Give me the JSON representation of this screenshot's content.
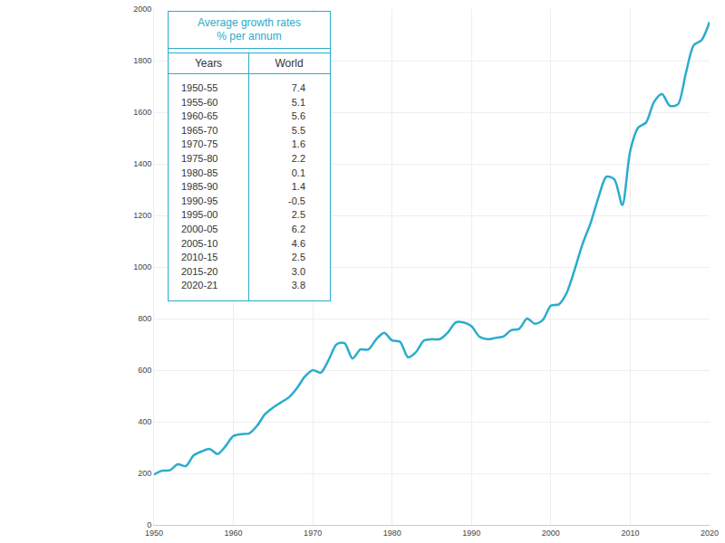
{
  "chart_data": {
    "type": "line",
    "color": "#2aaccc",
    "line_style": "solid",
    "grid": true,
    "x": [
      1950,
      1951,
      1952,
      1953,
      1954,
      1955,
      1956,
      1957,
      1958,
      1959,
      1960,
      1961,
      1962,
      1963,
      1964,
      1965,
      1966,
      1967,
      1968,
      1969,
      1970,
      1971,
      1972,
      1973,
      1974,
      1975,
      1976,
      1977,
      1978,
      1979,
      1980,
      1981,
      1982,
      1983,
      1984,
      1985,
      1986,
      1987,
      1988,
      1989,
      1990,
      1991,
      1992,
      1993,
      1994,
      1995,
      1996,
      1997,
      1998,
      1999,
      2000,
      2001,
      2002,
      2003,
      2004,
      2005,
      2006,
      2007,
      2008,
      2009,
      2010,
      2011,
      2012,
      2013,
      2014,
      2015,
      2016,
      2017,
      2018,
      2019,
      2020
    ],
    "values": [
      195,
      210,
      212,
      235,
      228,
      270,
      285,
      295,
      275,
      305,
      345,
      352,
      355,
      385,
      430,
      455,
      475,
      495,
      530,
      575,
      600,
      590,
      640,
      700,
      705,
      645,
      680,
      680,
      720,
      745,
      715,
      710,
      650,
      670,
      715,
      720,
      720,
      745,
      785,
      785,
      770,
      730,
      720,
      725,
      730,
      755,
      760,
      800,
      780,
      795,
      850,
      855,
      900,
      990,
      1090,
      1170,
      1270,
      1350,
      1340,
      1240,
      1450,
      1540,
      1560,
      1640,
      1670,
      1625,
      1630,
      1750,
      1860,
      1880,
      1950
    ],
    "xlim": [
      1950,
      2020
    ],
    "xticks": [
      1950,
      1960,
      1970,
      1980,
      1990,
      2000,
      2010,
      2020
    ],
    "ylim": [
      0,
      2000
    ],
    "yticks": [
      0,
      200,
      400,
      600,
      800,
      1000,
      1200,
      1400,
      1600,
      1800,
      2000
    ]
  },
  "table": {
    "title": [
      "Average growth rates",
      "% per annum"
    ],
    "header": [
      "Years",
      "World"
    ],
    "rows": [
      [
        "1950-55",
        "7.4"
      ],
      [
        "1955-60",
        "5.1"
      ],
      [
        "1960-65",
        "5.6"
      ],
      [
        "1965-70",
        "5.5"
      ],
      [
        "1970-75",
        "1.6"
      ],
      [
        "1975-80",
        "2.2"
      ],
      [
        "1980-85",
        "0.1"
      ],
      [
        "1985-90",
        "1.4"
      ],
      [
        "1990-95",
        "-0.5"
      ],
      [
        "1995-00",
        "2.5"
      ],
      [
        "2000-05",
        "6.2"
      ],
      [
        "2005-10",
        "4.6"
      ],
      [
        "2010-15",
        "2.5"
      ],
      [
        "2015-20",
        "3.0"
      ],
      [
        "2020-21",
        "3.8"
      ]
    ]
  }
}
